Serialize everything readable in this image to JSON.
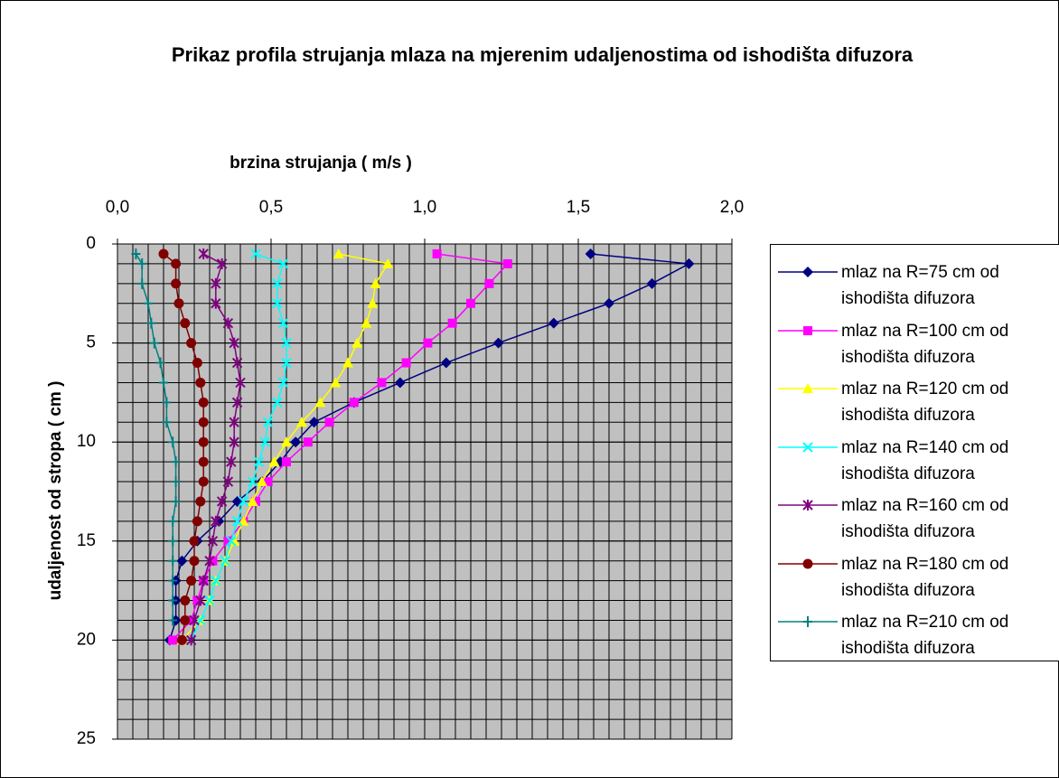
{
  "chart_data": {
    "type": "scatter",
    "title": "Prikaz profila strujanja mlaza na mjerenim udaljenostima od ishodišta difuzora",
    "x_label": "brzina strujanja ( m/s )",
    "y_label": "udaljenost od stropa ( cm )",
    "xlim": [
      0,
      2
    ],
    "xticks": [
      {
        "value": 0,
        "label": "0,0"
      },
      {
        "value": 0.5,
        "label": "0,5"
      },
      {
        "value": 1,
        "label": "1,0"
      },
      {
        "value": 1.5,
        "label": "1,5"
      },
      {
        "value": 2,
        "label": "2,0"
      }
    ],
    "ylim": [
      0,
      25
    ],
    "yticks": [
      0,
      5,
      10,
      15,
      20,
      25
    ],
    "y_inverted": true,
    "x_axis_position": "top",
    "grid": true,
    "xminor": 0.05,
    "yminor": 1,
    "plot_background": "#c0c0c0",
    "legend": "right",
    "y": [
      0.5,
      1,
      2,
      3,
      4,
      5,
      6,
      7,
      8,
      9,
      10,
      11,
      12,
      13,
      14,
      15,
      16,
      17,
      18,
      19,
      20
    ],
    "series": [
      {
        "name": "mlaz na R=75 cm od ishodišta difuzora",
        "color": "#000080",
        "marker": "diamond",
        "x": [
          1.54,
          1.86,
          1.74,
          1.6,
          1.42,
          1.24,
          1.07,
          0.92,
          0.77,
          0.64,
          0.58,
          0.53,
          0.47,
          0.39,
          0.33,
          0.26,
          0.21,
          0.19,
          0.19,
          0.19,
          0.17
        ]
      },
      {
        "name": "mlaz na R=100 cm od ishodišta difuzora",
        "color": "#ff00ff",
        "marker": "square",
        "x": [
          1.04,
          1.27,
          1.21,
          1.15,
          1.09,
          1.01,
          0.94,
          0.86,
          0.77,
          0.69,
          0.62,
          0.55,
          0.49,
          0.45,
          0.41,
          0.36,
          0.31,
          0.28,
          0.26,
          0.24,
          0.18
        ]
      },
      {
        "name": "mlaz na R=120 cm od ishodišta difuzora",
        "color": "#ffff00",
        "marker": "triangle",
        "x": [
          0.72,
          0.88,
          0.84,
          0.83,
          0.81,
          0.78,
          0.75,
          0.71,
          0.66,
          0.6,
          0.55,
          0.51,
          0.47,
          0.44,
          0.41,
          0.38,
          0.35,
          0.32,
          0.3,
          0.27,
          0.21
        ]
      },
      {
        "name": "mlaz na R=140 cm od ishodišta difuzora",
        "color": "#00ffff",
        "marker": "x",
        "x": [
          0.45,
          0.54,
          0.52,
          0.52,
          0.54,
          0.55,
          0.55,
          0.54,
          0.52,
          0.49,
          0.48,
          0.46,
          0.44,
          0.41,
          0.39,
          0.37,
          0.35,
          0.32,
          0.3,
          0.27,
          0.24
        ]
      },
      {
        "name": "mlaz na R=160 cm od ishodišta difuzora",
        "color": "#800080",
        "marker": "star",
        "x": [
          0.28,
          0.34,
          0.32,
          0.32,
          0.36,
          0.38,
          0.39,
          0.4,
          0.39,
          0.38,
          0.38,
          0.37,
          0.36,
          0.34,
          0.32,
          0.31,
          0.3,
          0.28,
          0.27,
          0.25,
          0.24
        ]
      },
      {
        "name": "mlaz na R=180 cm od ishodišta difuzora",
        "color": "#800000",
        "marker": "circle",
        "x": [
          0.15,
          0.19,
          0.19,
          0.2,
          0.22,
          0.24,
          0.26,
          0.27,
          0.28,
          0.28,
          0.28,
          0.28,
          0.28,
          0.27,
          0.26,
          0.25,
          0.25,
          0.24,
          0.22,
          0.22,
          0.21
        ]
      },
      {
        "name": "mlaz na R=210 cm od ishodišta difuzora",
        "color": "#008080",
        "marker": "plus",
        "x": [
          0.06,
          0.08,
          0.08,
          0.1,
          0.11,
          0.12,
          0.14,
          0.15,
          0.16,
          0.16,
          0.18,
          0.19,
          0.19,
          0.19,
          0.18,
          0.18,
          0.18,
          0.18,
          0.18,
          0.18,
          null
        ]
      }
    ]
  }
}
